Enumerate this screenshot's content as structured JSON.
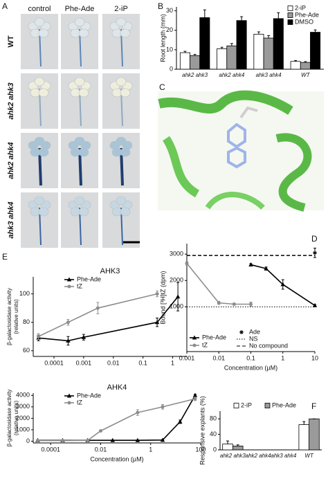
{
  "panel_labels": [
    "A",
    "B",
    "C",
    "D",
    "E",
    "F"
  ],
  "photo_grid": {
    "columns": [
      "control",
      "Phe-Ade",
      "2-iP"
    ],
    "rows": [
      "WT",
      "ahk2 ahk3",
      "ahk2 ahk4",
      "ahk3 ahk4"
    ]
  },
  "chart_data": [
    {
      "type": "bar",
      "y_label": "Root length (mm)",
      "categories": [
        "ahk2 ahk3",
        "ahk2 ahk4",
        "ahk3 ahk4",
        "WT"
      ],
      "series": [
        {
          "name": "2-iP",
          "color": "#ffffff",
          "values": [
            8.5,
            10.5,
            18,
            4
          ],
          "errors": [
            0.7,
            0.8,
            1.2,
            0.5
          ]
        },
        {
          "name": "Phe-Ade",
          "color": "#9a9a9a",
          "values": [
            7,
            12,
            16,
            3.5
          ],
          "errors": [
            0.6,
            1.2,
            1.3,
            0.4
          ]
        },
        {
          "name": "DMSO",
          "color": "#000000",
          "values": [
            26.5,
            25,
            26,
            19
          ],
          "errors": [
            4,
            2,
            3,
            1.2
          ]
        }
      ],
      "ylim": [
        0,
        32
      ],
      "yticks": [
        0,
        10,
        20,
        30
      ],
      "legend": "top-right"
    },
    {
      "type": "line",
      "x_label": "Concentration (µM)",
      "y_label": "Bound [³H]tZ (dpm)",
      "xscale": "log",
      "xlim": [
        0.001,
        10
      ],
      "xticks": [
        0.001,
        0.01,
        0.1,
        1,
        10
      ],
      "ylim": [
        -700,
        3400
      ],
      "yticks": [
        1000,
        2000,
        3000
      ],
      "series": [
        {
          "name": "Phe-Ade",
          "color": "#000000",
          "marker": "triangle",
          "line": true,
          "x": [
            0.1,
            0.3,
            1,
            10
          ],
          "values": [
            2600,
            2450,
            1850,
            1050
          ],
          "errors": [
            40,
            60,
            180,
            40
          ]
        },
        {
          "name": "tZ",
          "color": "#8c8c8c",
          "marker": "circle",
          "line": true,
          "x": [
            0.001,
            0.01,
            0.03,
            0.1
          ],
          "values": [
            2650,
            1150,
            1100,
            1100
          ],
          "errors": [
            60,
            60,
            40,
            80
          ]
        },
        {
          "name": "Ade",
          "color": "#000000",
          "marker": "star",
          "line": false,
          "x": [
            10
          ],
          "values": [
            3050
          ],
          "errors": [
            180
          ]
        }
      ],
      "reference_lines": [
        {
          "name": "NS",
          "value": 1000,
          "style": "dotted"
        },
        {
          "name": "No compound",
          "value": 2950,
          "style": "dashed"
        }
      ],
      "legend": "lower-left"
    },
    {
      "type": "line",
      "title": "AHK3",
      "y_label": [
        "β-galactosidase activity",
        "(relative units)"
      ],
      "xscale": "log",
      "xlim": [
        2e-05,
        3
      ],
      "xticks": [
        0.0001,
        0.001,
        0.01,
        0.1,
        1
      ],
      "ylim": [
        56,
        112
      ],
      "yticks": [
        60,
        80,
        100
      ],
      "series": [
        {
          "name": "Phe-Ade",
          "color": "#000000",
          "marker": "triangle",
          "line": true,
          "x": [
            3e-05,
            0.0003,
            0.001,
            0.3,
            1.5
          ],
          "values": [
            69,
            67,
            69.5,
            80,
            98
          ],
          "errors": [
            2,
            3,
            2,
            3,
            10
          ]
        },
        {
          "name": "tZ",
          "color": "#8c8c8c",
          "marker": "circle",
          "line": true,
          "x": [
            3e-05,
            0.0003,
            0.003,
            0.3
          ],
          "values": [
            70,
            80,
            90,
            100
          ],
          "errors": [
            2,
            2,
            4,
            2
          ]
        }
      ],
      "legend": "upper-left"
    },
    {
      "type": "line",
      "title": "AHK4",
      "x_label": "Concentration (µM)",
      "y_label": [
        "β-galactosidase activity",
        "(relative units)"
      ],
      "xscale": "log",
      "xlim": [
        2e-05,
        100
      ],
      "xticks": [
        0.0001,
        0.01,
        1,
        100
      ],
      "ylim": [
        -150,
        4200
      ],
      "yticks": [
        0,
        1000,
        2000,
        3000,
        4000
      ],
      "series": [
        {
          "name": "Phe-Ade",
          "color": "#000000",
          "marker": "triangle",
          "line": true,
          "x": [
            3e-05,
            0.0003,
            0.003,
            0.03,
            0.3,
            3,
            15,
            60
          ],
          "values": [
            80,
            80,
            80,
            80,
            80,
            100,
            1700,
            4000
          ],
          "errors": [
            30,
            30,
            30,
            30,
            30,
            40,
            150,
            100
          ]
        },
        {
          "name": "tZ",
          "color": "#8c8c8c",
          "marker": "circle",
          "line": true,
          "x": [
            3e-05,
            0.0003,
            0.003,
            0.01,
            0.3,
            3,
            60
          ],
          "values": [
            60,
            60,
            70,
            900,
            2500,
            3000,
            3700
          ],
          "errors": [
            20,
            20,
            20,
            80,
            250,
            200,
            150
          ]
        }
      ],
      "legend": "upper-left"
    },
    {
      "type": "bar",
      "y_label": "Responsive explants (%)",
      "categories": [
        "ahk2 ahk3",
        "ahk2 ahk4",
        "ahk3 ahk4",
        "WT"
      ],
      "series": [
        {
          "name": "2-iP",
          "color": "#ffffff",
          "values": [
            15,
            0,
            0,
            65
          ],
          "errors": [
            8,
            0,
            0,
            8
          ]
        },
        {
          "name": "Phe-Ade",
          "color": "#9a9a9a",
          "values": [
            10,
            0,
            0,
            80
          ],
          "errors": [
            3,
            0,
            0,
            0
          ]
        }
      ],
      "ylim": [
        0,
        100
      ],
      "yticks": [
        0,
        40,
        80
      ],
      "legend": "top"
    }
  ]
}
